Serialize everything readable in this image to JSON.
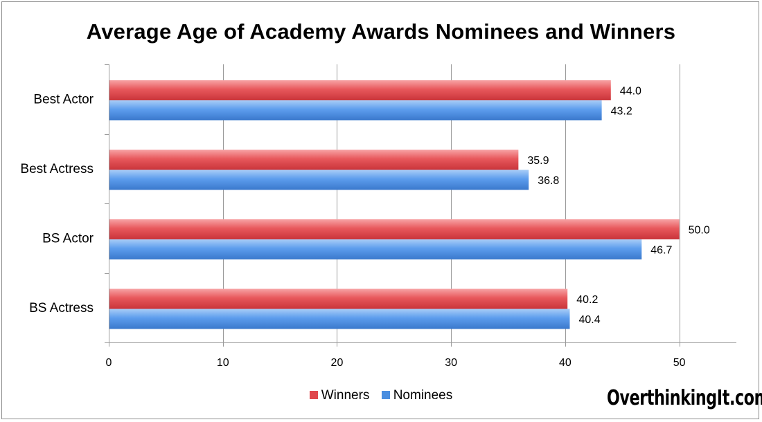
{
  "chart_data": {
    "type": "bar",
    "orientation": "horizontal",
    "title": "Average Age of Academy Awards Nominees and Winners",
    "categories": [
      "Best Actor",
      "Best Actress",
      "BS Actor",
      "BS Actress"
    ],
    "series": [
      {
        "name": "Winners",
        "values": [
          44.0,
          35.9,
          50.0,
          40.2
        ],
        "labels": [
          "44.0",
          "35.9",
          "50.0",
          "40.2"
        ],
        "color": "#e0474c"
      },
      {
        "name": "Nominees",
        "values": [
          43.2,
          36.8,
          46.7,
          40.4
        ],
        "labels": [
          "43.2",
          "36.8",
          "46.7",
          "40.4"
        ],
        "color": "#4a8ee0"
      }
    ],
    "xlim": [
      0,
      55
    ],
    "xticks": [
      "0",
      "10",
      "20",
      "30",
      "40",
      "50"
    ],
    "grid": "vertical",
    "legend_position": "bottom"
  },
  "watermark": "OverthinkingIt.com"
}
